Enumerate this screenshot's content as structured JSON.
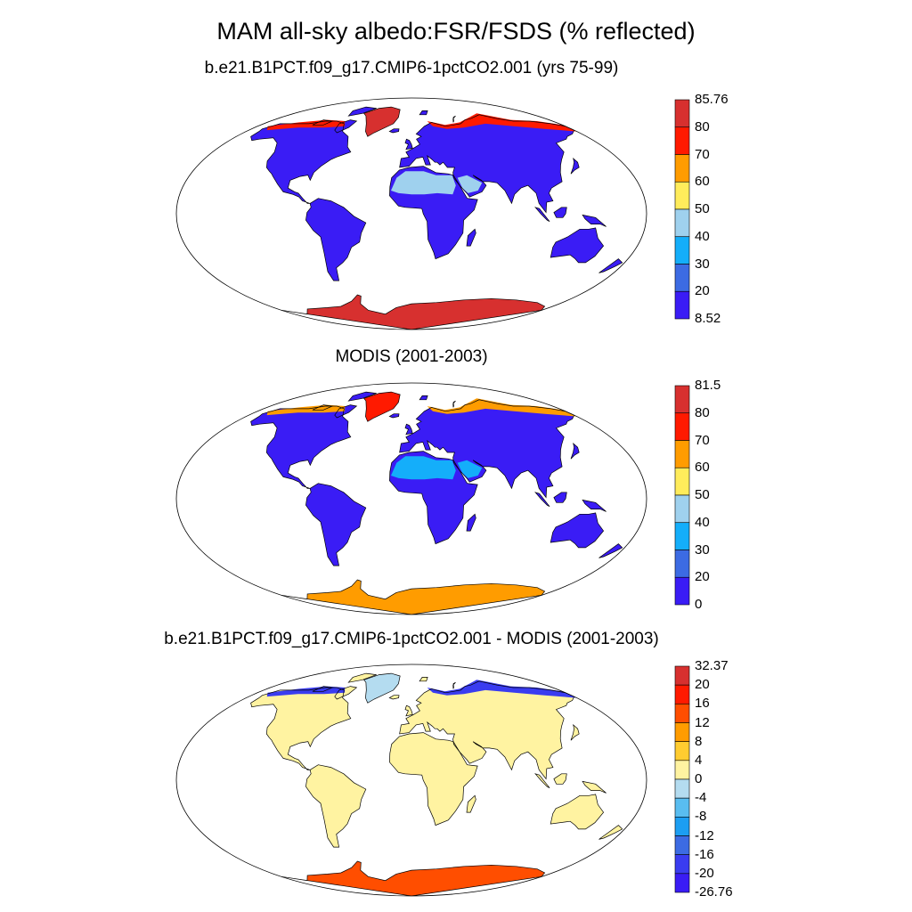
{
  "figure": {
    "title": "MAM all-sky albedo:FSR/FSDS (% reflected)"
  },
  "panels": [
    {
      "id": "model",
      "title": "b.e21.B1PCT.f09_g17.CMIP6-1pctCO2.001 (yrs 75-99)",
      "colorbar": {
        "labels": [
          "85.76",
          "80",
          "70",
          "60",
          "50",
          "40",
          "30",
          "20",
          "8.52"
        ],
        "colors": [
          "#d7302f",
          "#ff1a00",
          "#ff9c00",
          "#ffec5b",
          "#9fd1ee",
          "#14aefa",
          "#3c6be3",
          "#3a1cf5"
        ]
      },
      "fields": {
        "default_land": "#3a1cf5",
        "sahara_desert": "#9fd1ee",
        "arabia_desert": "#9fd1ee",
        "greenland": "#d7302f",
        "antarctica": "#d7302f",
        "arctic_rim": "#ff1a00"
      }
    },
    {
      "id": "obs",
      "title": "MODIS (2001-2003)",
      "colorbar": {
        "labels": [
          "81.5",
          "80",
          "70",
          "60",
          "50",
          "40",
          "30",
          "20",
          "0"
        ],
        "colors": [
          "#d7302f",
          "#ff1a00",
          "#ff9c00",
          "#ffec5b",
          "#9fd1ee",
          "#14aefa",
          "#3c6be3",
          "#3a1cf5"
        ]
      },
      "fields": {
        "default_land": "#3a1cf5",
        "sahara_desert": "#14aefa",
        "arabia_desert": "#14aefa",
        "greenland": "#ff1a00",
        "antarctica": "#ff9c00",
        "arctic_rim": "#ff9c00"
      }
    },
    {
      "id": "diff",
      "title": "b.e21.B1PCT.f09_g17.CMIP6-1pctCO2.001 - MODIS (2001-2003)",
      "colorbar": {
        "labels": [
          "32.37",
          "20",
          "16",
          "12",
          "8",
          "4",
          "0",
          "-4",
          "-8",
          "-12",
          "-16",
          "-20",
          "-26.76"
        ],
        "colors": [
          "#d7302f",
          "#ff1a00",
          "#ff4e00",
          "#ff9c00",
          "#ffcc30",
          "#fff3a1",
          "#b4dcf0",
          "#59bdf0",
          "#1c9ef2",
          "#3c6be3",
          "#3a3cf0",
          "#3a1cf5"
        ]
      },
      "fields": {
        "default_land": "#fff3a1",
        "sahara_desert": "#fff3a1",
        "arabia_desert": "#fff3a1",
        "greenland": "#b4dcf0",
        "antarctica": "#ff4e00",
        "arctic_rim": "#3a3cf0"
      }
    }
  ]
}
